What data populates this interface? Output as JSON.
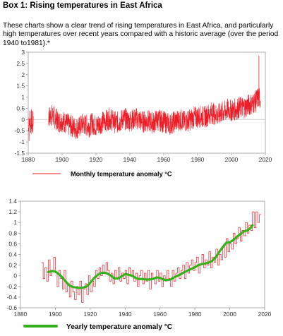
{
  "box": {
    "title": "Box 1: Rising temperatures in East Africa",
    "intro": "These charts show a clear trend of rising temperatures in East Africa, and particularly high temperatures over recent years compared with a historic average (over the period 1940 to1981).*"
  },
  "chart_data": [
    {
      "type": "line",
      "title": "",
      "legend_label": "Monthly temperature anomaly °C",
      "legend_position": "bottom",
      "colors": {
        "series": "#ee1c25",
        "zero_line": "#cccccc"
      },
      "xlim": [
        1880,
        2020
      ],
      "ylim": [
        -1.5,
        3
      ],
      "x_ticks": [
        1880,
        1900,
        1920,
        1940,
        1960,
        1980,
        2000,
        2020
      ],
      "y_ticks": [
        3,
        2.5,
        2,
        1.5,
        1,
        0.5,
        0,
        -0.5,
        -1,
        -1.5
      ],
      "grid": false,
      "note": "monthly series 1880-1883 and 1892-2017; plotted as trend points below",
      "series": [
        {
          "x": [
            1880,
            1880.5,
            1881,
            1881.5,
            1882,
            1882.5,
            1883,
            1892,
            1894,
            1896,
            1898,
            1900,
            1902,
            1904,
            1906,
            1908,
            1910,
            1912,
            1914,
            1916,
            1918,
            1920,
            1922,
            1924,
            1926,
            1928,
            1930,
            1932,
            1934,
            1936,
            1938,
            1940,
            1942,
            1944,
            1946,
            1948,
            1950,
            1952,
            1954,
            1956,
            1958,
            1960,
            1962,
            1964,
            1966,
            1968,
            1970,
            1972,
            1974,
            1976,
            1978,
            1980,
            1982,
            1984,
            1986,
            1988,
            1990,
            1992,
            1994,
            1996,
            1998,
            2000,
            2002,
            2004,
            2006,
            2008,
            2010,
            2012,
            2014,
            2016,
            2017
          ],
          "y": [
            0.1,
            -0.5,
            0.2,
            -0.3,
            0.0,
            -0.4,
            0.1,
            0.1,
            0.2,
            0.05,
            -0.1,
            -0.05,
            -0.15,
            -0.25,
            -0.3,
            -0.4,
            -0.35,
            -0.2,
            -0.25,
            -0.3,
            -0.15,
            -0.3,
            -0.2,
            -0.1,
            -0.05,
            0.05,
            -0.05,
            -0.15,
            -0.1,
            0.05,
            0.0,
            -0.05,
            0.0,
            0.05,
            -0.05,
            -0.1,
            -0.05,
            -0.1,
            -0.15,
            0.0,
            -0.05,
            -0.1,
            -0.15,
            -0.2,
            -0.1,
            -0.05,
            0.0,
            -0.1,
            -0.05,
            0.0,
            0.1,
            0.1,
            0.15,
            0.1,
            0.2,
            0.3,
            0.25,
            0.2,
            0.3,
            0.35,
            0.45,
            0.4,
            0.45,
            0.5,
            0.55,
            0.55,
            0.65,
            0.7,
            0.8,
            1.0,
            0.9
          ]
        }
      ]
    },
    {
      "type": "line",
      "title": "",
      "legend_label": "Yearly temperature anomaly °C",
      "legend_position": "bottom",
      "colors": {
        "annual": "#ee1c25",
        "smoothed": "#33b21a"
      },
      "xlim": [
        1880,
        2020
      ],
      "ylim": [
        -0.6,
        1.4
      ],
      "x_ticks": [
        1880,
        1900,
        1920,
        1940,
        1960,
        1980,
        2000,
        2020
      ],
      "y_ticks": [
        1.4,
        1.2,
        1,
        0.8,
        0.6,
        0.4,
        0.2,
        0,
        -0.2,
        -0.4,
        -0.6
      ],
      "grid": false,
      "series": [
        {
          "style": "step",
          "x": [
            1892,
            1893,
            1894,
            1895,
            1896,
            1897,
            1898,
            1899,
            1900,
            1901,
            1902,
            1903,
            1904,
            1905,
            1906,
            1907,
            1908,
            1909,
            1910,
            1911,
            1912,
            1913,
            1914,
            1915,
            1916,
            1917,
            1918,
            1919,
            1920,
            1921,
            1922,
            1923,
            1924,
            1925,
            1926,
            1927,
            1928,
            1929,
            1930,
            1931,
            1932,
            1933,
            1934,
            1935,
            1936,
            1937,
            1938,
            1939,
            1940,
            1941,
            1942,
            1943,
            1944,
            1945,
            1946,
            1947,
            1948,
            1949,
            1950,
            1951,
            1952,
            1953,
            1954,
            1955,
            1956,
            1957,
            1958,
            1959,
            1960,
            1961,
            1962,
            1963,
            1964,
            1965,
            1966,
            1967,
            1968,
            1969,
            1970,
            1971,
            1972,
            1973,
            1974,
            1975,
            1976,
            1977,
            1978,
            1979,
            1980,
            1981,
            1982,
            1983,
            1984,
            1985,
            1986,
            1987,
            1988,
            1989,
            1990,
            1991,
            1992,
            1993,
            1994,
            1995,
            1996,
            1997,
            1998,
            1999,
            2000,
            2001,
            2002,
            2003,
            2004,
            2005,
            2006,
            2007,
            2008,
            2009,
            2010,
            2011,
            2012,
            2013,
            2014,
            2015,
            2016,
            2017
          ],
          "y": [
            0.25,
            -0.05,
            0.15,
            -0.1,
            0.3,
            0.0,
            0.1,
            0.35,
            0.05,
            -0.2,
            0.1,
            -0.05,
            -0.25,
            0.1,
            -0.3,
            -0.15,
            -0.4,
            -0.1,
            -0.3,
            -0.45,
            -0.2,
            -0.35,
            -0.1,
            -0.5,
            -0.25,
            -0.15,
            -0.35,
            0.0,
            -0.3,
            -0.1,
            -0.2,
            0.1,
            -0.05,
            0.15,
            0.0,
            0.2,
            0.05,
            0.25,
            0.1,
            -0.1,
            0.05,
            -0.15,
            0.1,
            -0.05,
            0.15,
            -0.1,
            0.05,
            -0.05,
            0.1,
            -0.15,
            0.15,
            0.0,
            0.1,
            -0.1,
            0.05,
            -0.2,
            0.0,
            0.1,
            -0.15,
            0.05,
            -0.1,
            0.1,
            -0.25,
            0.05,
            -0.05,
            -0.15,
            0.1,
            -0.1,
            0.05,
            -0.2,
            0.0,
            -0.1,
            0.1,
            -0.05,
            -0.2,
            0.1,
            -0.1,
            0.05,
            0.15,
            -0.05,
            0.1,
            0.2,
            -0.05,
            0.25,
            0.05,
            0.2,
            0.3,
            0.1,
            0.25,
            0.35,
            0.05,
            0.2,
            0.4,
            0.15,
            0.3,
            0.2,
            0.45,
            0.15,
            0.35,
            0.25,
            0.5,
            0.2,
            0.4,
            0.3,
            0.55,
            0.35,
            0.7,
            0.45,
            0.6,
            0.5,
            0.8,
            0.6,
            0.7,
            0.9,
            0.65,
            0.85,
            0.75,
            1.0,
            0.8,
            0.95,
            0.85,
            1.2,
            0.9,
            1.2,
            1.0,
            1.15
          ]
        },
        {
          "style": "smooth",
          "x": [
            1896,
            1898,
            1900,
            1902,
            1904,
            1906,
            1908,
            1910,
            1912,
            1914,
            1916,
            1918,
            1920,
            1922,
            1924,
            1926,
            1928,
            1930,
            1932,
            1934,
            1936,
            1938,
            1940,
            1942,
            1944,
            1946,
            1948,
            1950,
            1952,
            1954,
            1956,
            1958,
            1960,
            1962,
            1964,
            1966,
            1968,
            1970,
            1972,
            1974,
            1976,
            1978,
            1980,
            1982,
            1984,
            1986,
            1988,
            1990,
            1992,
            1994,
            1996,
            1998,
            2000,
            2002,
            2004,
            2006,
            2008,
            2010,
            2012,
            2013
          ],
          "y": [
            0.07,
            0.09,
            0.08,
            0.03,
            -0.03,
            -0.11,
            -0.18,
            -0.21,
            -0.22,
            -0.23,
            -0.22,
            -0.2,
            -0.13,
            -0.05,
            0.01,
            0.05,
            0.06,
            0.04,
            0.0,
            -0.05,
            -0.05,
            -0.01,
            0.03,
            0.02,
            0.0,
            -0.04,
            -0.06,
            -0.06,
            -0.07,
            -0.07,
            -0.06,
            -0.03,
            -0.04,
            -0.07,
            -0.08,
            -0.07,
            -0.03,
            0.0,
            0.03,
            0.07,
            0.1,
            0.13,
            0.16,
            0.2,
            0.22,
            0.23,
            0.25,
            0.28,
            0.35,
            0.45,
            0.54,
            0.62,
            0.63,
            0.67,
            0.73,
            0.78,
            0.83,
            0.85,
            0.9,
            0.95
          ]
        }
      ]
    }
  ]
}
